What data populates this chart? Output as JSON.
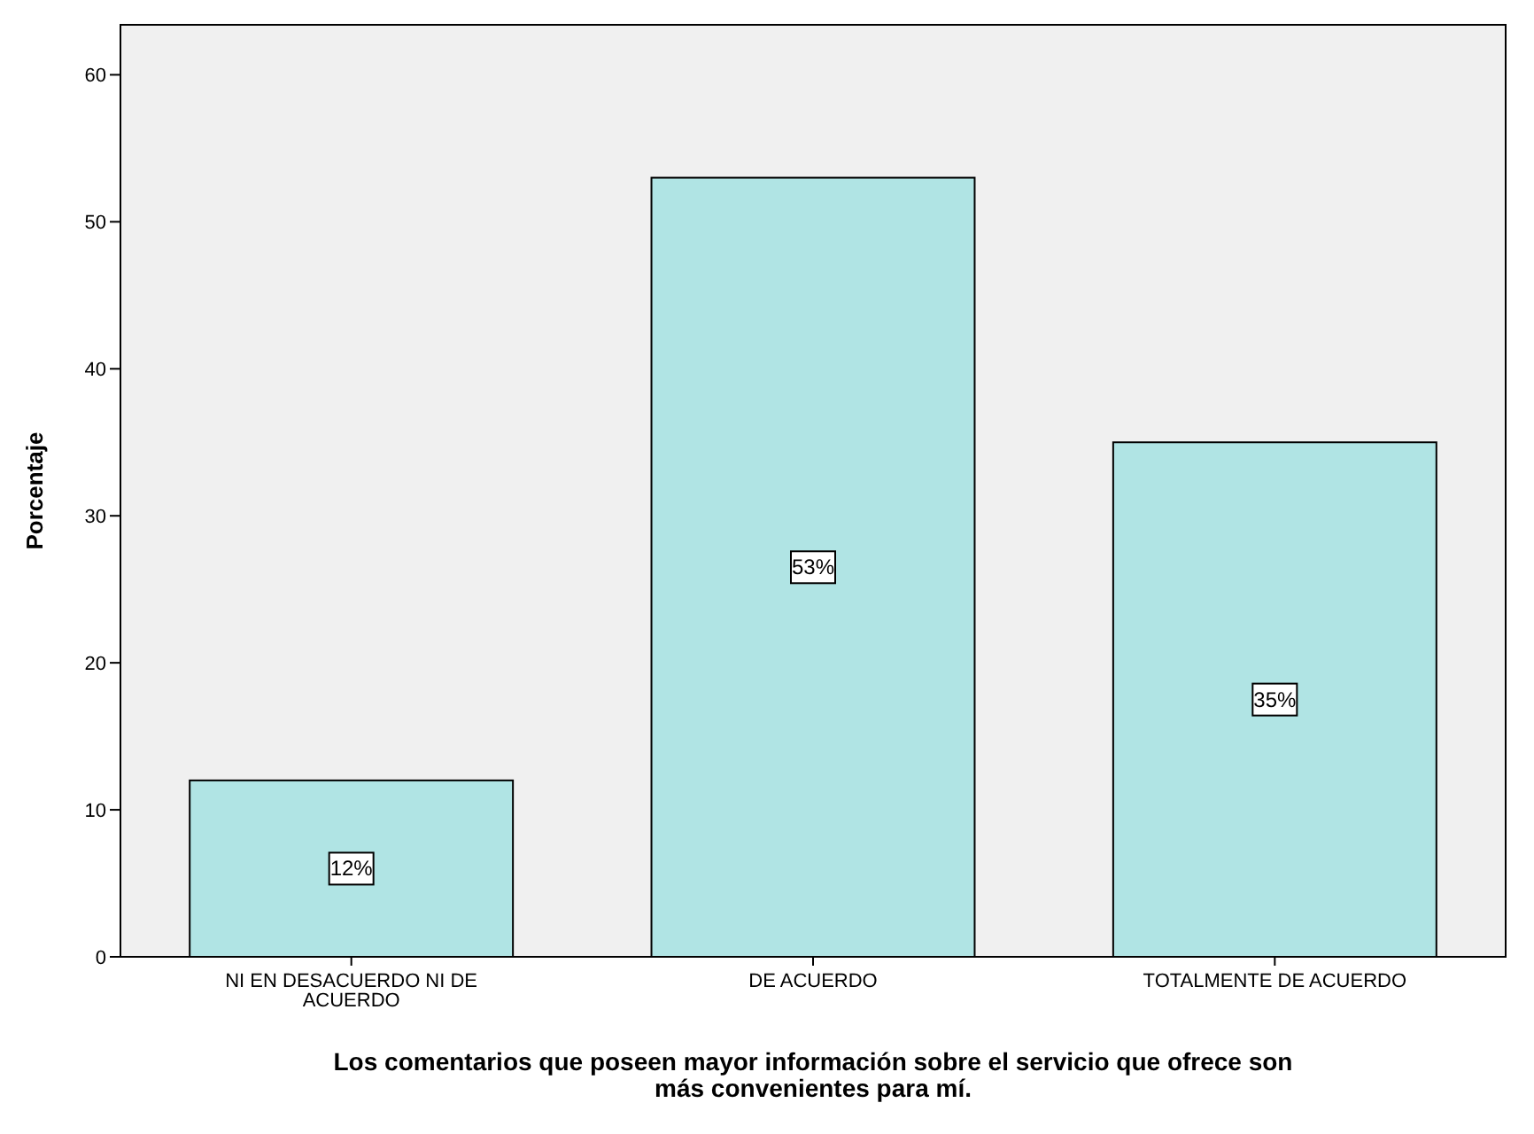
{
  "chart_data": {
    "type": "bar",
    "ylabel": "Porcentaje",
    "xlabel": "Los comentarios que poseen mayor información sobre el servicio que ofrece son más convenientes para mí.",
    "categories": [
      "NI EN DESACUERDO NI DE ACUERDO",
      "DE ACUERDO",
      "TOTALMENTE DE ACUERDO"
    ],
    "values": [
      12,
      53,
      35
    ],
    "value_labels": [
      "12%",
      "53%",
      "35%"
    ],
    "color": "#b0e4e4",
    "ylim": [
      0,
      63.4
    ],
    "yticks": [
      0,
      10,
      20,
      30,
      40,
      50,
      60
    ],
    "grid": false
  }
}
